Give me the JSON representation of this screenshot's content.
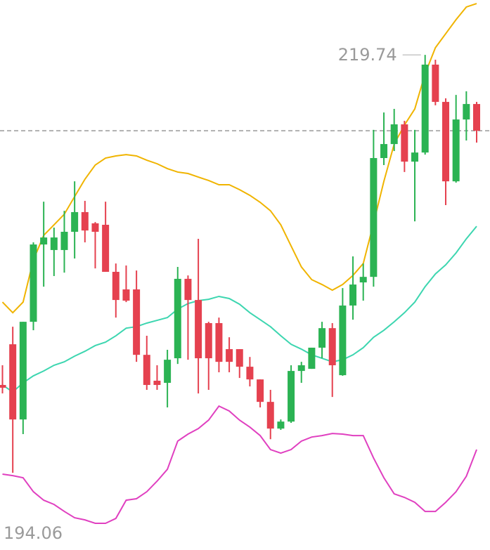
{
  "chart_data": {
    "type": "candlestick",
    "max_label": "219.74",
    "min_label": "194.06",
    "ylim": [
      189.32,
      223.11
    ],
    "up_color": "#2bb353",
    "down_color": "#e5414f",
    "open": [
      199.46,
      201.96,
      197.34,
      203.34,
      208.09,
      207.75,
      207.75,
      208.87,
      210.08,
      209.39,
      209.3,
      206.41,
      205.33,
      205.33,
      201.31,
      199.72,
      199.59,
      201.1,
      205.98,
      204.68,
      203.26,
      203.26,
      201.66,
      201.66,
      200.58,
      199.8,
      198.42,
      196.78,
      197.21,
      200.32,
      200.45,
      201.75,
      202.95,
      200.06,
      204.34,
      205.76,
      206.1,
      213.4,
      214.26,
      215.47,
      213.18,
      213.74,
      219.14,
      216.85,
      211.97,
      215.77,
      216.72
    ],
    "close": [
      199.29,
      197.34,
      203.34,
      208.09,
      208.52,
      208.52,
      208.87,
      210.08,
      208.95,
      208.87,
      206.41,
      204.68,
      204.64,
      201.31,
      199.46,
      199.46,
      201.01,
      205.98,
      204.68,
      201.1,
      201.1,
      200.88,
      200.88,
      200.58,
      199.8,
      198.42,
      196.78,
      197.21,
      200.32,
      200.67,
      201.75,
      202.95,
      200.67,
      204.34,
      205.63,
      206.1,
      213.4,
      214.26,
      215.47,
      213.18,
      213.74,
      219.14,
      216.85,
      211.97,
      215.77,
      216.72,
      215.08
    ],
    "high": [
      200.67,
      203.04,
      203.34,
      208.22,
      210.72,
      209.13,
      210.16,
      211.97,
      210.77,
      209.47,
      210.72,
      206.92,
      206.8,
      206.49,
      202.48,
      200.67,
      201.62,
      206.71,
      206.19,
      208.44,
      203.34,
      203.6,
      202.39,
      201.66,
      201.18,
      199.8,
      199.16,
      197.34,
      200.67,
      200.88,
      201.75,
      203.34,
      203.26,
      205.41,
      207.36,
      206.92,
      215.13,
      216.2,
      216.42,
      215.69,
      215.13,
      219.74,
      219.44,
      217.07,
      217.28,
      217.5,
      216.85
    ],
    "low": [
      198.94,
      194.06,
      196.44,
      202.82,
      205.5,
      206.15,
      206.36,
      207.23,
      208.22,
      206.62,
      206.41,
      203.6,
      204.55,
      200.88,
      199.16,
      199.16,
      198.08,
      200.75,
      201.01,
      198.94,
      199.16,
      200.24,
      200.24,
      199.89,
      199.37,
      198.08,
      196.13,
      196.7,
      197.13,
      199.59,
      200.45,
      201.1,
      198.72,
      200.02,
      203.47,
      204.64,
      205.5,
      212.97,
      213.83,
      212.54,
      209.51,
      213.61,
      216.64,
      210.51,
      211.89,
      214.48,
      214.35
    ],
    "bands": [
      {
        "color": "#f0b400",
        "values": [
          204.55,
          203.9,
          204.55,
          207.14,
          208.65,
          209.3,
          209.95,
          211.03,
          212.1,
          212.97,
          213.4,
          213.53,
          213.61,
          213.53,
          213.27,
          213.05,
          212.75,
          212.54,
          212.45,
          212.23,
          212.02,
          211.76,
          211.76,
          211.46,
          211.11,
          210.68,
          210.16,
          209.3,
          208.0,
          206.71,
          205.93,
          205.63,
          205.28,
          205.63,
          206.19,
          206.92,
          209.39,
          211.97,
          214.26,
          215.43,
          216.42,
          218.58,
          220.18,
          221.04,
          221.9,
          222.68,
          222.89
        ]
      },
      {
        "color": "#3dd6b0",
        "values": [
          199.46,
          199.03,
          199.59,
          200.02,
          200.32,
          200.67,
          200.88,
          201.23,
          201.53,
          201.88,
          202.09,
          202.48,
          202.95,
          203.04,
          203.26,
          203.43,
          203.6,
          204.12,
          204.46,
          204.64,
          204.72,
          204.9,
          204.77,
          204.42,
          203.9,
          203.47,
          203.04,
          202.48,
          201.96,
          201.66,
          201.31,
          201.1,
          200.88,
          201.01,
          201.31,
          201.75,
          202.39,
          202.82,
          203.34,
          203.9,
          204.55,
          205.5,
          206.28,
          206.84,
          207.57,
          208.44,
          209.21
        ]
      },
      {
        "color": "#e040c0",
        "values": [
          193.98,
          193.89,
          193.76,
          192.9,
          192.38,
          192.12,
          191.69,
          191.3,
          191.17,
          190.96,
          190.96,
          191.26,
          192.38,
          192.47,
          192.9,
          193.55,
          194.28,
          196.01,
          196.44,
          196.78,
          197.3,
          198.16,
          197.86,
          197.3,
          196.87,
          196.35,
          195.49,
          195.27,
          195.49,
          196.01,
          196.26,
          196.35,
          196.48,
          196.44,
          196.35,
          196.35,
          194.97,
          193.76,
          192.77,
          192.55,
          192.25,
          191.69,
          191.69,
          192.25,
          192.9,
          193.85,
          195.49
        ]
      }
    ]
  }
}
